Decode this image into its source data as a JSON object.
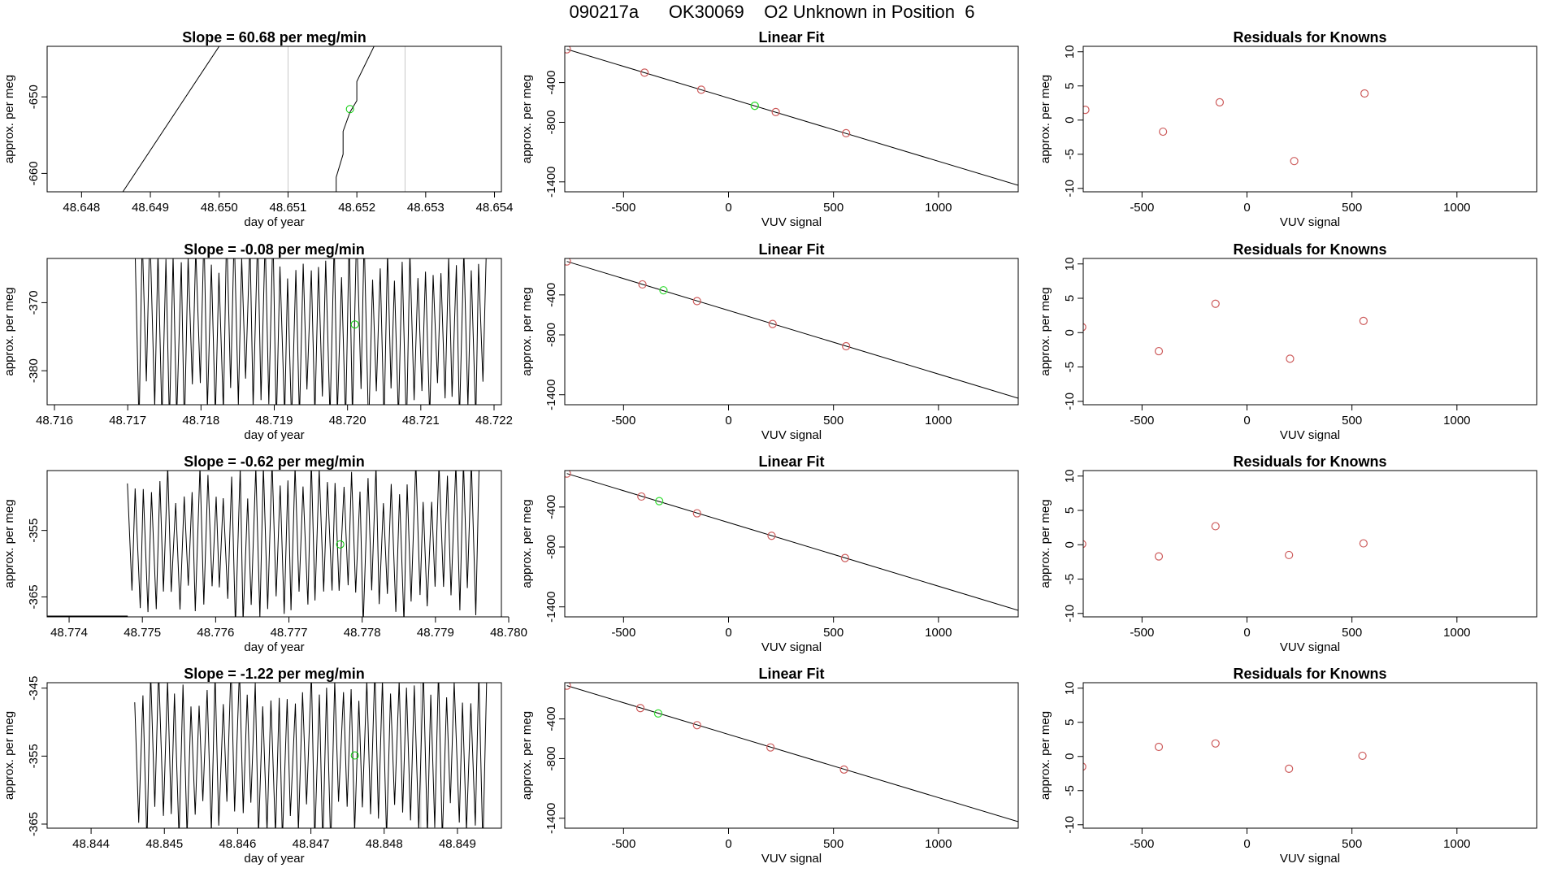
{
  "title": "090217a      OK30069    O2 Unknown in Position  6",
  "chart_data": [
    {
      "type": "line",
      "row": 0,
      "title": "Slope =  60.68  per meg/min",
      "xlabel": "day of year",
      "ylabel": "approx. per meg",
      "xlim": [
        48.6475,
        48.6541
      ],
      "ylim": [
        -662.4,
        -643.4
      ],
      "xticks": [
        "48.648",
        "48.649",
        "48.650",
        "48.651",
        "48.652",
        "48.653",
        "48.654"
      ],
      "yticks": [
        "-650",
        "-660"
      ],
      "ytick_values": [
        -650,
        -660
      ],
      "vlines": [
        48.651,
        48.6527
      ],
      "series": [
        {
          "name": "signal",
          "color": "#000000",
          "x": [
            48.6485,
            48.65,
            48.6486,
            48.6486,
            48.6517,
            48.6517,
            48.6518,
            48.6518,
            48.6519,
            48.652,
            48.652,
            48.65225
          ],
          "y": [
            -643.4,
            -643.4,
            -662.4,
            -662.4,
            -662.4,
            -660.5,
            -657.5,
            -654.5,
            -652,
            -650.5,
            -648,
            -643.4
          ]
        },
        {
          "name": "mean",
          "color": "#00cc00",
          "x": [
            48.6519
          ],
          "y": [
            -651.6
          ]
        }
      ]
    },
    {
      "type": "line",
      "row": 1,
      "title": "Slope =  -0.08  per meg/min",
      "xlabel": "day of year",
      "ylabel": "approx. per meg",
      "xlim": [
        48.7159,
        48.7221
      ],
      "ylim": [
        -385,
        -363.5
      ],
      "xticks": [
        "48.716",
        "48.717",
        "48.718",
        "48.719",
        "48.720",
        "48.721",
        "48.722"
      ],
      "yticks": [
        "-370",
        "-380"
      ],
      "ytick_values": [
        -370,
        -380
      ],
      "vlines": [],
      "osc": {
        "start": 48.7171,
        "end": 48.7219,
        "cycles": 46,
        "min": -387,
        "max": -361,
        "seed": 7
      },
      "series": [
        {
          "name": "mean",
          "color": "#00cc00",
          "x": [
            48.7201
          ],
          "y": [
            -373.2
          ]
        }
      ]
    },
    {
      "type": "line",
      "row": 2,
      "title": "Slope =  -0.62  per meg/min",
      "xlabel": "day of year",
      "ylabel": "approx. per meg",
      "xlim": [
        48.7737,
        48.7799
      ],
      "ylim": [
        -368,
        -346
      ],
      "xticks": [
        "48.774",
        "48.775",
        "48.776",
        "48.777",
        "48.778",
        "48.779",
        "48.780"
      ],
      "yticks": [
        "-355",
        "-365"
      ],
      "ytick_values": [
        -355,
        -365
      ],
      "vlines": [],
      "baseline": -368,
      "osc": {
        "start": 48.7748,
        "end": 48.7796,
        "cycles": 44,
        "min": -368,
        "max": -346,
        "seed": 13
      },
      "series": [
        {
          "name": "mean",
          "color": "#00cc00",
          "x": [
            48.7777
          ],
          "y": [
            -357.1
          ]
        }
      ]
    },
    {
      "type": "line",
      "row": 3,
      "title": "Slope =  -1.22  per meg/min",
      "xlabel": "day of year",
      "ylabel": "approx. per meg",
      "xlim": [
        48.8434,
        48.8496
      ],
      "ylim": [
        -365.6,
        -344.2
      ],
      "xticks": [
        "48.844",
        "48.845",
        "48.846",
        "48.847",
        "48.848",
        "48.849"
      ],
      "yticks": [
        "-345",
        "-355",
        "-365"
      ],
      "ytick_values": [
        -345,
        -355,
        -365
      ],
      "vlines": [
        48.8485
      ],
      "osc": {
        "start": 48.8446,
        "end": 48.8494,
        "cycles": 44,
        "min": -367,
        "max": -343,
        "seed": 21
      },
      "series": [
        {
          "name": "mean",
          "color": "#00cc00",
          "x": [
            48.8476
          ],
          "y": [
            -354.9
          ]
        }
      ]
    },
    {
      "type": "scatter",
      "row": 0,
      "title": "Linear Fit",
      "xlabel": "VUV signal",
      "ylabel": "approx. per meg",
      "xlim": [
        -780,
        1380
      ],
      "ylim": [
        -1500,
        -35
      ],
      "xticks": [
        "-500",
        "0",
        "500",
        "1000"
      ],
      "xtick_values": [
        -500,
        0,
        500,
        1000
      ],
      "yticks": [
        "-400",
        "-800",
        "-1400"
      ],
      "ytick_values": [
        -400,
        -800,
        -1400
      ],
      "line": {
        "x": [
          -770,
          1380
        ],
        "y": [
          -65,
          -1435
        ]
      },
      "knowns": {
        "x": [
          -770,
          -400,
          -130,
          225,
          560
        ],
        "y": [
          -65,
          -300,
          -472,
          -697,
          -910
        ]
      },
      "unknown": {
        "x": [
          125,
          125
        ],
        "y": [
          -634,
          -634
        ]
      }
    },
    {
      "type": "scatter",
      "row": 1,
      "title": "Linear Fit",
      "xlabel": "VUV signal",
      "ylabel": "approx. per meg",
      "xlim": [
        -780,
        1380
      ],
      "ylim": [
        -1500,
        -35
      ],
      "xticks": [
        "-500",
        "0",
        "500",
        "1000"
      ],
      "xtick_values": [
        -500,
        0,
        500,
        1000
      ],
      "yticks": [
        "-400",
        "-800",
        "-1400"
      ],
      "ytick_values": [
        -400,
        -800,
        -1400
      ],
      "line": {
        "x": [
          -770,
          1380
        ],
        "y": [
          -65,
          -1435
        ]
      },
      "knowns": {
        "x": [
          -770,
          -410,
          -150,
          210,
          560
        ],
        "y": [
          -65,
          -295,
          -462,
          -691,
          -914
        ]
      },
      "unknown": {
        "x": [
          -310
        ],
        "y": [
          -354
        ]
      }
    },
    {
      "type": "scatter",
      "row": 2,
      "title": "Linear Fit",
      "xlabel": "VUV signal",
      "ylabel": "approx. per meg",
      "xlim": [
        -780,
        1380
      ],
      "ylim": [
        -1500,
        -35
      ],
      "xticks": [
        "-500",
        "0",
        "500",
        "1000"
      ],
      "xtick_values": [
        -500,
        0,
        500,
        1000
      ],
      "yticks": [
        "-400",
        "-800",
        "-1400"
      ],
      "ytick_values": [
        -400,
        -800,
        -1400
      ],
      "line": {
        "x": [
          -770,
          1380
        ],
        "y": [
          -65,
          -1435
        ]
      },
      "knowns": {
        "x": [
          -770,
          -415,
          -150,
          205,
          555
        ],
        "y": [
          -65,
          -295,
          -463,
          -688,
          -911
        ]
      },
      "unknown": {
        "x": [
          -330
        ],
        "y": [
          -341
        ]
      }
    },
    {
      "type": "scatter",
      "row": 3,
      "title": "Linear Fit",
      "xlabel": "VUV signal",
      "ylabel": "approx. per meg",
      "xlim": [
        -780,
        1380
      ],
      "ylim": [
        -1500,
        -35
      ],
      "xticks": [
        "-500",
        "0",
        "500",
        "1000"
      ],
      "xtick_values": [
        -500,
        0,
        500,
        1000
      ],
      "yticks": [
        "-400",
        "-800",
        "-1400"
      ],
      "ytick_values": [
        -400,
        -800,
        -1400
      ],
      "line": {
        "x": [
          -770,
          1380
        ],
        "y": [
          -65,
          -1435
        ]
      },
      "knowns": {
        "x": [
          -770,
          -420,
          -150,
          200,
          550
        ],
        "y": [
          -65,
          -291,
          -463,
          -687,
          -910
        ]
      },
      "unknown": {
        "x": [
          -335
        ],
        "y": [
          -345
        ]
      }
    },
    {
      "type": "scatter",
      "row": 0,
      "title": "Residuals for Knowns",
      "xlabel": "VUV signal",
      "ylabel": "approx. per meg",
      "xlim": [
        -780,
        1380
      ],
      "ylim": [
        -10.5,
        10.8
      ],
      "xticks": [
        "-500",
        "0",
        "500",
        "1000"
      ],
      "xtick_values": [
        -500,
        0,
        500,
        1000
      ],
      "yticks": [
        "10",
        "5",
        "0",
        "-5",
        "-10"
      ],
      "ytick_values": [
        10,
        5,
        0,
        -5,
        -10
      ],
      "points": {
        "x": [
          -770,
          -400,
          -130,
          225,
          560
        ],
        "y": [
          1.5,
          -1.7,
          2.6,
          -6.0,
          3.9
        ]
      }
    },
    {
      "type": "scatter",
      "row": 1,
      "title": "Residuals for Knowns",
      "xlabel": "VUV signal",
      "ylabel": "approx. per meg",
      "xlim": [
        -780,
        1380
      ],
      "ylim": [
        -10.5,
        10.8
      ],
      "xticks": [
        "-500",
        "0",
        "500",
        "1000"
      ],
      "xtick_values": [
        -500,
        0,
        500,
        1000
      ],
      "yticks": [
        "10",
        "5",
        "0",
        "-5",
        "-10"
      ],
      "ytick_values": [
        10,
        5,
        0,
        -5,
        -10
      ],
      "points": {
        "x": [
          -785,
          -420,
          -150,
          205,
          555
        ],
        "y": [
          0.8,
          -2.7,
          4.2,
          -3.8,
          1.7
        ]
      }
    },
    {
      "type": "scatter",
      "row": 2,
      "title": "Residuals for Knowns",
      "xlabel": "VUV signal",
      "ylabel": "approx. per meg",
      "xlim": [
        -780,
        1380
      ],
      "ylim": [
        -10.5,
        10.8
      ],
      "xticks": [
        "-500",
        "0",
        "500",
        "1000"
      ],
      "xtick_values": [
        -500,
        0,
        500,
        1000
      ],
      "yticks": [
        "10",
        "5",
        "0",
        "-5",
        "-10"
      ],
      "ytick_values": [
        10,
        5,
        0,
        -5,
        -10
      ],
      "points": {
        "x": [
          -785,
          -420,
          -150,
          200,
          555
        ],
        "y": [
          0.1,
          -1.7,
          2.7,
          -1.5,
          0.2
        ]
      }
    },
    {
      "type": "scatter",
      "row": 3,
      "title": "Residuals for Knowns",
      "xlabel": "VUV signal",
      "ylabel": "approx. per meg",
      "xlim": [
        -780,
        1380
      ],
      "ylim": [
        -10.5,
        10.8
      ],
      "xticks": [
        "-500",
        "0",
        "500",
        "1000"
      ],
      "xtick_values": [
        -500,
        0,
        500,
        1000
      ],
      "yticks": [
        "10",
        "5",
        "0",
        "-5",
        "-10"
      ],
      "ytick_values": [
        10,
        5,
        0,
        -5,
        -10
      ],
      "points": {
        "x": [
          -785,
          -420,
          -150,
          200,
          550
        ],
        "y": [
          -1.5,
          1.4,
          1.9,
          -1.8,
          0.1
        ]
      }
    }
  ]
}
